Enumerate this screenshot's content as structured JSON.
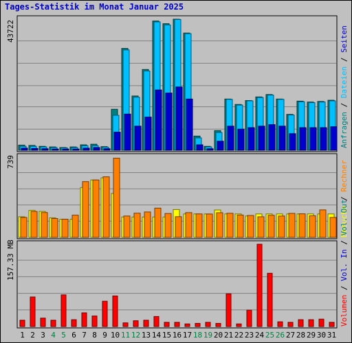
{
  "title": "Tages-Statistik im Monat Januar 2025",
  "chart_data": [
    {
      "type": "bar",
      "panel": "top",
      "ymax_label": "43722",
      "ymax": 43722,
      "categories": [
        "1",
        "2",
        "3",
        "4",
        "5",
        "6",
        "7",
        "8",
        "9",
        "10",
        "11",
        "12",
        "13",
        "14",
        "15",
        "16",
        "17",
        "18",
        "19",
        "20",
        "21",
        "22",
        "23",
        "24",
        "25",
        "26",
        "27",
        "28",
        "29",
        "30",
        "31"
      ],
      "series": [
        {
          "name": "Anfragen",
          "color": "#008080",
          "values": [
            1700,
            1600,
            1300,
            1100,
            900,
            1100,
            1800,
            2000,
            1200,
            13600,
            33800,
            18000,
            26800,
            42900,
            42000,
            43500,
            38900,
            4700,
            1300,
            6500,
            17000,
            15200,
            16500,
            17700,
            18500,
            17000,
            11900,
            16300,
            16000,
            16200,
            16600
          ]
        },
        {
          "name": "Dateien",
          "color": "#00bfff",
          "values": [
            1300,
            1300,
            1100,
            900,
            800,
            900,
            1500,
            1500,
            1000,
            11600,
            33300,
            17600,
            26300,
            42600,
            41600,
            43400,
            38700,
            4100,
            1100,
            5900,
            16900,
            15000,
            16400,
            17500,
            18300,
            16900,
            11700,
            16100,
            15800,
            16000,
            16400
          ]
        },
        {
          "name": "Seiten",
          "color": "#0000cc",
          "values": [
            700,
            600,
            500,
            400,
            400,
            400,
            700,
            900,
            500,
            6000,
            12000,
            8000,
            11000,
            20000,
            19000,
            21000,
            17000,
            1800,
            500,
            3000,
            8000,
            7000,
            7500,
            8000,
            8500,
            8000,
            5500,
            7500,
            7500,
            7500,
            7800
          ]
        }
      ],
      "legend_labels": [
        "Anfragen",
        "Dateien",
        "Seiten"
      ],
      "legend_colors": [
        "#008080",
        "#00bfff",
        "#0000cc"
      ]
    },
    {
      "type": "bar",
      "panel": "middle",
      "ymax_label": "739",
      "ymax": 739,
      "series": [
        {
          "name": "Besuche",
          "color": "#ffff00",
          "values": [
            188,
            246,
            237,
            178,
            166,
            166,
            455,
            524,
            543,
            401,
            186,
            186,
            186,
            186,
            186,
            254,
            214,
            214,
            214,
            250,
            214,
            214,
            195,
            214,
            214,
            214,
            214,
            214,
            214,
            214,
            214
          ]
        },
        {
          "name": "Rechner",
          "color": "#ff8000",
          "values": [
            182,
            237,
            227,
            172,
            166,
            203,
            509,
            524,
            553,
            723,
            195,
            221,
            232,
            267,
            218,
            189,
            226,
            214,
            213,
            225,
            220,
            204,
            200,
            188,
            202,
            195,
            219,
            215,
            197,
            251,
            182
          ]
        }
      ],
      "legend_labels": [
        "Besuche",
        "Rechner"
      ],
      "legend_colors": [
        "#ffff00",
        "#ff8000"
      ]
    },
    {
      "type": "bar",
      "panel": "bottom",
      "ymax_label": "157.33 MB",
      "ymax": 157.33,
      "series": [
        {
          "name": "Volumen",
          "color": "#ff0000",
          "values": [
            12,
            56,
            16,
            12,
            60,
            13,
            26,
            20,
            48,
            58,
            7,
            11,
            12,
            19,
            8,
            8,
            5,
            6,
            8,
            6,
            62,
            5,
            31,
            156,
            101,
            9,
            8,
            13,
            13,
            14,
            8
          ]
        }
      ],
      "legend_labels": [
        "Volumen",
        "Vol. In",
        "Vol. Out"
      ],
      "legend_colors": [
        "#ff0000",
        "#0000cc",
        "#008080"
      ]
    }
  ],
  "weekend_days": [
    "4",
    "5",
    "11",
    "12",
    "18",
    "19",
    "25",
    "26"
  ],
  "colors": {
    "weekday": "#000000",
    "weekend": "#008040",
    "background": "#c0c0c0",
    "grid": "#808080"
  }
}
